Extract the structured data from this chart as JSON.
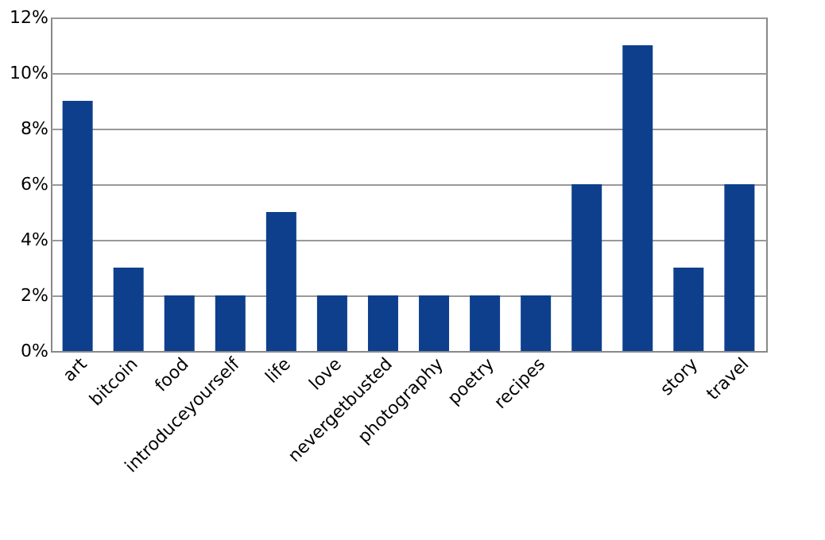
{
  "chart_data": {
    "type": "bar",
    "categories": [
      "art",
      "bitcoin",
      "food",
      "introduceyourself",
      "life",
      "love",
      "nevergetbusted",
      "photography",
      "poetry",
      "recipes",
      null,
      null,
      "story",
      "travel"
    ],
    "values": [
      9,
      3,
      2,
      2,
      5,
      2,
      2,
      2,
      2,
      2,
      6,
      11,
      3,
      6
    ],
    "color": "#0d3f8c",
    "ylim": [
      0,
      12
    ],
    "yticks": [
      {
        "value": 0,
        "label": "0%"
      },
      {
        "value": 2,
        "label": "2%"
      },
      {
        "value": 4,
        "label": "4%"
      },
      {
        "value": 6,
        "label": "6%"
      },
      {
        "value": 8,
        "label": "8%"
      },
      {
        "value": 10,
        "label": "10%"
      },
      {
        "value": 12,
        "label": "12%"
      }
    ],
    "grid": "y"
  }
}
